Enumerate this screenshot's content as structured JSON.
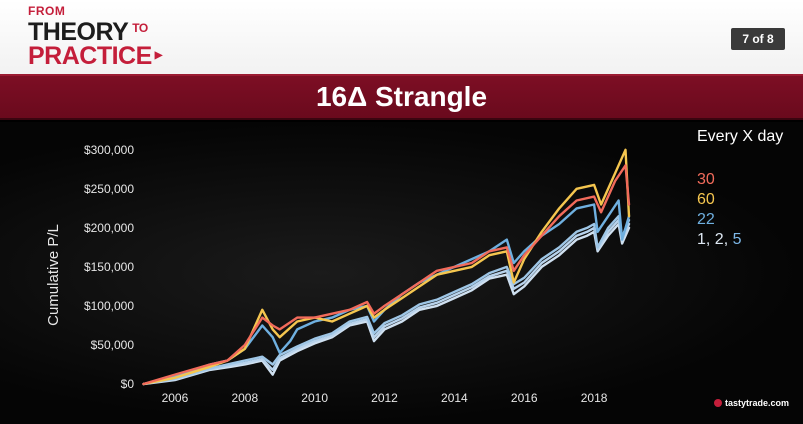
{
  "header": {
    "logo_line1": "FROM",
    "logo_line2": "THEORY",
    "logo_to": "TO",
    "logo_line3": "PRACTICE",
    "page_indicator": "7 of 8"
  },
  "title": "16Δ Strangle",
  "legend": {
    "title": "Every X day",
    "items": [
      {
        "label": "30",
        "color": "#f26b5b"
      },
      {
        "label": "60",
        "color": "#f5c64f"
      },
      {
        "label": "22",
        "color": "#6fb0e0"
      }
    ],
    "last_label_a": "1, 2, ",
    "last_label_b": "5"
  },
  "brand": "tastytrade.com",
  "chart_data": {
    "type": "line",
    "ylabel": "Cumulative P/L",
    "xlim": [
      2005,
      2019.6
    ],
    "ylim": [
      0,
      310000
    ],
    "x_ticks": [
      2006,
      2008,
      2010,
      2012,
      2014,
      2016,
      2018
    ],
    "y_ticks": [
      0,
      50000,
      100000,
      150000,
      200000,
      250000,
      300000
    ],
    "y_tick_labels": [
      "$0",
      "$50,000",
      "$100,000",
      "$150,000",
      "$200,000",
      "$250,000",
      "$300,000"
    ],
    "grid": false,
    "legend_position": "right",
    "series": [
      {
        "name": "1",
        "color": "#cfe0f0",
        "points": [
          [
            2005.1,
            0
          ],
          [
            2006,
            5000
          ],
          [
            2007,
            18000
          ],
          [
            2007.6,
            22000
          ],
          [
            2008,
            25000
          ],
          [
            2008.5,
            30000
          ],
          [
            2008.8,
            12000
          ],
          [
            2009,
            30000
          ],
          [
            2009.5,
            42000
          ],
          [
            2010,
            52000
          ],
          [
            2010.5,
            60000
          ],
          [
            2011,
            75000
          ],
          [
            2011.5,
            80000
          ],
          [
            2011.7,
            55000
          ],
          [
            2012,
            70000
          ],
          [
            2012.5,
            80000
          ],
          [
            2013,
            95000
          ],
          [
            2013.5,
            100000
          ],
          [
            2014,
            110000
          ],
          [
            2014.5,
            120000
          ],
          [
            2015,
            135000
          ],
          [
            2015.5,
            140000
          ],
          [
            2015.7,
            115000
          ],
          [
            2016,
            125000
          ],
          [
            2016.5,
            150000
          ],
          [
            2017,
            165000
          ],
          [
            2017.5,
            185000
          ],
          [
            2017.8,
            190000
          ],
          [
            2018,
            195000
          ],
          [
            2018.1,
            170000
          ],
          [
            2018.4,
            190000
          ],
          [
            2018.7,
            205000
          ],
          [
            2018.8,
            180000
          ],
          [
            2019,
            200000
          ]
        ]
      },
      {
        "name": "2",
        "color": "#b8d3ec",
        "points": [
          [
            2005.1,
            0
          ],
          [
            2006,
            6000
          ],
          [
            2007,
            19000
          ],
          [
            2007.6,
            24000
          ],
          [
            2008,
            27000
          ],
          [
            2008.5,
            32000
          ],
          [
            2008.8,
            18000
          ],
          [
            2009,
            33000
          ],
          [
            2009.5,
            45000
          ],
          [
            2010,
            55000
          ],
          [
            2010.5,
            62000
          ],
          [
            2011,
            77000
          ],
          [
            2011.5,
            83000
          ],
          [
            2011.7,
            60000
          ],
          [
            2012,
            74000
          ],
          [
            2012.5,
            84000
          ],
          [
            2013,
            98000
          ],
          [
            2013.5,
            104000
          ],
          [
            2014,
            114000
          ],
          [
            2014.5,
            124000
          ],
          [
            2015,
            138000
          ],
          [
            2015.5,
            145000
          ],
          [
            2015.7,
            122000
          ],
          [
            2016,
            130000
          ],
          [
            2016.5,
            155000
          ],
          [
            2017,
            170000
          ],
          [
            2017.5,
            190000
          ],
          [
            2017.8,
            195000
          ],
          [
            2018,
            200000
          ],
          [
            2018.1,
            172000
          ],
          [
            2018.4,
            195000
          ],
          [
            2018.7,
            210000
          ],
          [
            2018.8,
            185000
          ],
          [
            2019,
            205000
          ]
        ]
      },
      {
        "name": "5",
        "color": "#9ec6e6",
        "points": [
          [
            2005.1,
            0
          ],
          [
            2006,
            7000
          ],
          [
            2007,
            20000
          ],
          [
            2007.6,
            26000
          ],
          [
            2008,
            30000
          ],
          [
            2008.5,
            35000
          ],
          [
            2008.8,
            25000
          ],
          [
            2009,
            37000
          ],
          [
            2009.5,
            48000
          ],
          [
            2010,
            58000
          ],
          [
            2010.5,
            65000
          ],
          [
            2011,
            80000
          ],
          [
            2011.5,
            86000
          ],
          [
            2011.7,
            65000
          ],
          [
            2012,
            78000
          ],
          [
            2012.5,
            88000
          ],
          [
            2013,
            102000
          ],
          [
            2013.5,
            108000
          ],
          [
            2014,
            118000
          ],
          [
            2014.5,
            128000
          ],
          [
            2015,
            142000
          ],
          [
            2015.5,
            150000
          ],
          [
            2015.7,
            128000
          ],
          [
            2016,
            136000
          ],
          [
            2016.5,
            160000
          ],
          [
            2017,
            175000
          ],
          [
            2017.5,
            195000
          ],
          [
            2017.8,
            200000
          ],
          [
            2018,
            205000
          ],
          [
            2018.1,
            175000
          ],
          [
            2018.4,
            200000
          ],
          [
            2018.7,
            215000
          ],
          [
            2018.8,
            188000
          ],
          [
            2019,
            210000
          ]
        ]
      },
      {
        "name": "22",
        "color": "#6fb0e0",
        "points": [
          [
            2005.1,
            0
          ],
          [
            2006,
            10000
          ],
          [
            2007,
            25000
          ],
          [
            2007.5,
            30000
          ],
          [
            2008,
            45000
          ],
          [
            2008.5,
            75000
          ],
          [
            2008.8,
            60000
          ],
          [
            2009,
            40000
          ],
          [
            2009.3,
            55000
          ],
          [
            2009.5,
            70000
          ],
          [
            2010,
            80000
          ],
          [
            2010.5,
            85000
          ],
          [
            2011,
            95000
          ],
          [
            2011.5,
            100000
          ],
          [
            2011.7,
            80000
          ],
          [
            2012,
            95000
          ],
          [
            2012.5,
            115000
          ],
          [
            2013,
            130000
          ],
          [
            2013.5,
            140000
          ],
          [
            2014,
            150000
          ],
          [
            2014.5,
            160000
          ],
          [
            2015,
            170000
          ],
          [
            2015.5,
            185000
          ],
          [
            2015.7,
            155000
          ],
          [
            2016,
            170000
          ],
          [
            2016.5,
            190000
          ],
          [
            2017,
            205000
          ],
          [
            2017.5,
            225000
          ],
          [
            2018,
            230000
          ],
          [
            2018.1,
            195000
          ],
          [
            2018.4,
            215000
          ],
          [
            2018.7,
            235000
          ],
          [
            2018.8,
            185000
          ],
          [
            2019,
            215000
          ]
        ]
      },
      {
        "name": "60",
        "color": "#f5c64f",
        "points": [
          [
            2005.1,
            0
          ],
          [
            2006,
            8000
          ],
          [
            2007,
            22000
          ],
          [
            2007.5,
            30000
          ],
          [
            2008,
            45000
          ],
          [
            2008.5,
            95000
          ],
          [
            2008.8,
            70000
          ],
          [
            2009,
            60000
          ],
          [
            2009.5,
            80000
          ],
          [
            2010,
            85000
          ],
          [
            2010.5,
            80000
          ],
          [
            2011,
            90000
          ],
          [
            2011.5,
            100000
          ],
          [
            2011.7,
            85000
          ],
          [
            2012,
            95000
          ],
          [
            2012.5,
            110000
          ],
          [
            2013,
            125000
          ],
          [
            2013.5,
            140000
          ],
          [
            2014,
            145000
          ],
          [
            2014.5,
            150000
          ],
          [
            2015,
            165000
          ],
          [
            2015.5,
            170000
          ],
          [
            2015.7,
            130000
          ],
          [
            2016,
            160000
          ],
          [
            2016.5,
            195000
          ],
          [
            2017,
            225000
          ],
          [
            2017.5,
            250000
          ],
          [
            2018,
            255000
          ],
          [
            2018.2,
            230000
          ],
          [
            2018.6,
            270000
          ],
          [
            2018.9,
            300000
          ],
          [
            2019,
            215000
          ]
        ]
      },
      {
        "name": "30",
        "color": "#f26b5b",
        "points": [
          [
            2005.1,
            0
          ],
          [
            2006,
            12000
          ],
          [
            2007,
            25000
          ],
          [
            2007.5,
            30000
          ],
          [
            2008,
            50000
          ],
          [
            2008.5,
            85000
          ],
          [
            2008.8,
            75000
          ],
          [
            2009,
            70000
          ],
          [
            2009.5,
            85000
          ],
          [
            2010,
            85000
          ],
          [
            2010.5,
            90000
          ],
          [
            2011,
            95000
          ],
          [
            2011.5,
            105000
          ],
          [
            2011.7,
            90000
          ],
          [
            2012,
            100000
          ],
          [
            2012.5,
            115000
          ],
          [
            2013,
            130000
          ],
          [
            2013.5,
            145000
          ],
          [
            2014,
            150000
          ],
          [
            2014.5,
            155000
          ],
          [
            2015,
            170000
          ],
          [
            2015.5,
            175000
          ],
          [
            2015.7,
            145000
          ],
          [
            2016,
            165000
          ],
          [
            2016.5,
            190000
          ],
          [
            2017,
            215000
          ],
          [
            2017.5,
            235000
          ],
          [
            2018,
            240000
          ],
          [
            2018.2,
            220000
          ],
          [
            2018.6,
            260000
          ],
          [
            2018.9,
            280000
          ],
          [
            2019,
            230000
          ]
        ]
      }
    ]
  }
}
